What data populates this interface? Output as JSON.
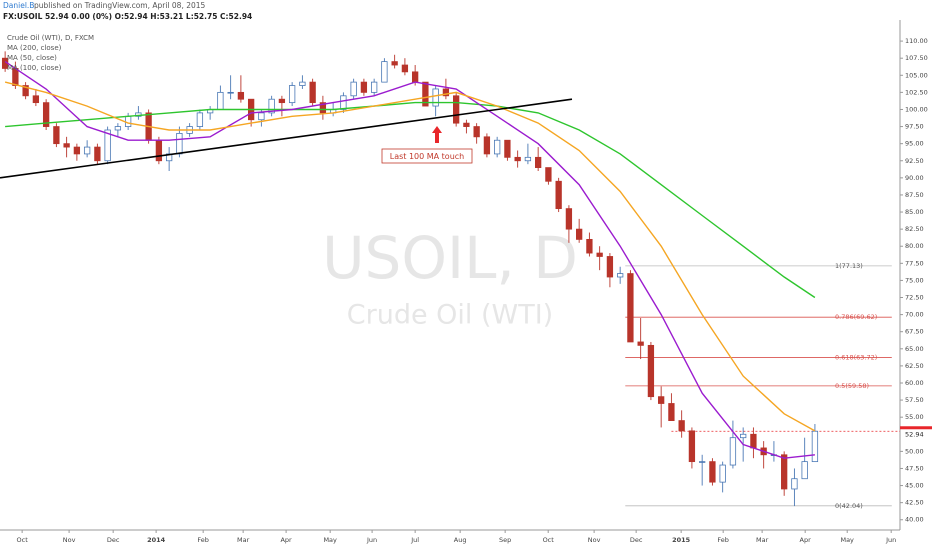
{
  "header": {
    "author": "Daniel.B",
    "published": "published on TradingView.com, April 08, 2015",
    "quote": "FX:USOIL 52.94 0.00 (0%) O:52.94 H:53.21 L:52.75 C:52.94"
  },
  "chart_data": {
    "type": "candlestick",
    "legend": [
      "Crude Oil (WTI), D, FXCM",
      "MA (200, close)",
      "MA (50, close)",
      "MA (100, close)"
    ],
    "watermark": [
      "USOIL, D",
      "Crude Oil (WTI)"
    ],
    "annotation": "Last 100 MA touch",
    "up_color": "#4a78b5",
    "down_color": "#b8342a",
    "xlim": [
      -0.5,
      87.3
    ],
    "ylim": [
      38.5,
      112.5
    ],
    "xticks": [
      {
        "value": 1.66,
        "label": "Oct"
      },
      {
        "value": 6.24,
        "label": "Nov"
      },
      {
        "value": 10.54,
        "label": "Dec"
      },
      {
        "value": 14.73,
        "label": "2014"
      },
      {
        "value": 19.32,
        "label": "Feb"
      },
      {
        "value": 23.22,
        "label": "Mar"
      },
      {
        "value": 27.41,
        "label": "Apr"
      },
      {
        "value": 31.71,
        "label": "May"
      },
      {
        "value": 35.8,
        "label": "Jun"
      },
      {
        "value": 40,
        "label": "Jul"
      },
      {
        "value": 44.39,
        "label": "Aug"
      },
      {
        "value": 48.78,
        "label": "Sep"
      },
      {
        "value": 52.98,
        "label": "Oct"
      },
      {
        "value": 57.46,
        "label": "Nov"
      },
      {
        "value": 61.56,
        "label": "Dec"
      },
      {
        "value": 65.95,
        "label": "2015"
      },
      {
        "value": 70.05,
        "label": "Feb"
      },
      {
        "value": 73.85,
        "label": "Mar"
      },
      {
        "value": 78.05,
        "label": "Apr"
      },
      {
        "value": 82.15,
        "label": "May"
      },
      {
        "value": 86.44,
        "label": "Jun"
      }
    ],
    "yticks": [
      {
        "value": 40,
        "label": "40.00"
      },
      {
        "value": 42.5,
        "label": "42.50"
      },
      {
        "value": 45,
        "label": "45.00"
      },
      {
        "value": 47.5,
        "label": "47.50"
      },
      {
        "value": 50,
        "label": "50.00"
      },
      {
        "value": 55,
        "label": "55.00"
      },
      {
        "value": 57.5,
        "label": "57.50"
      },
      {
        "value": 60,
        "label": "60.00"
      },
      {
        "value": 62.5,
        "label": "62.50"
      },
      {
        "value": 65,
        "label": "65.00"
      },
      {
        "value": 67.5,
        "label": "67.50"
      },
      {
        "value": 70,
        "label": "70.00"
      },
      {
        "value": 72.5,
        "label": "72.50"
      },
      {
        "value": 75,
        "label": "75.00"
      },
      {
        "value": 77.5,
        "label": "77.50"
      },
      {
        "value": 80,
        "label": "80.00"
      },
      {
        "value": 82.5,
        "label": "82.50"
      },
      {
        "value": 85,
        "label": "85.00"
      },
      {
        "value": 87.5,
        "label": "87.50"
      },
      {
        "value": 90,
        "label": "90.00"
      },
      {
        "value": 92.5,
        "label": "92.50"
      },
      {
        "value": 95,
        "label": "95.00"
      },
      {
        "value": 97.5,
        "label": "97.50"
      },
      {
        "value": 100,
        "label": "100.00"
      },
      {
        "value": 102.5,
        "label": "102.50"
      },
      {
        "value": 105,
        "label": "105.00"
      },
      {
        "value": 107.5,
        "label": "107.50"
      },
      {
        "value": 110,
        "label": "110.00"
      }
    ],
    "open": [
      107.5,
      106,
      103.5,
      102,
      101,
      97.5,
      95,
      94.5,
      93.5,
      94.5,
      92.5,
      97,
      97.5,
      99,
      99.5,
      95.5,
      92.5,
      93.5,
      96.5,
      97.5,
      99.5,
      100,
      102.5,
      102.5,
      101.5,
      98.5,
      99.5,
      101.5,
      101,
      103.5,
      104,
      101,
      99.5,
      100,
      102,
      104,
      102.5,
      104,
      107,
      106.5,
      105.5,
      104,
      100.5,
      103,
      102,
      98,
      97.5,
      96,
      93.5,
      95.5,
      93,
      92.5,
      93,
      91.5,
      89.5,
      85.5,
      82.5,
      81,
      79,
      78.5,
      75.5,
      76,
      66,
      65.5,
      58,
      57,
      54.5,
      53,
      48.5,
      48.5,
      45.5,
      48,
      52,
      52.5,
      50.5,
      49.5,
      49.5,
      44.5,
      46,
      48.5
    ],
    "high": [
      108.5,
      107,
      104,
      103,
      101.5,
      98,
      96,
      95,
      95.5,
      95,
      97.5,
      98,
      99.5,
      100.5,
      100,
      96,
      94.5,
      97.5,
      98,
      100,
      100.5,
      103.5,
      105,
      105,
      101.5,
      100,
      102,
      102,
      104,
      105,
      104.5,
      102,
      101,
      102.5,
      104.5,
      104.5,
      104.5,
      107.5,
      108,
      107.5,
      106.5,
      104,
      103.5,
      104.5,
      102.5,
      98.5,
      98,
      96.5,
      96,
      95.5,
      94,
      95,
      94.5,
      91.5,
      90,
      86,
      84,
      82,
      80,
      79,
      77,
      76.5,
      69.5,
      66,
      59.5,
      58.5,
      56,
      53.5,
      49.5,
      49,
      48.5,
      54.5,
      53.5,
      53.5,
      51.5,
      51.5,
      50,
      47.5,
      52,
      54
    ],
    "low": [
      105.5,
      103,
      101.5,
      100.5,
      97,
      94.5,
      93,
      92.5,
      93,
      92,
      92,
      96,
      97,
      98.5,
      95,
      92,
      91,
      93,
      96,
      97,
      98.5,
      100,
      101.5,
      101,
      97.5,
      97.5,
      99,
      99,
      100.5,
      103,
      100.5,
      98.5,
      99,
      99.5,
      101.5,
      102,
      102,
      104,
      106,
      105,
      103.5,
      100.5,
      99,
      101.5,
      97.5,
      96.5,
      95,
      93,
      93,
      92.5,
      91.5,
      92,
      91,
      89,
      85,
      80.5,
      80.5,
      78.5,
      76.5,
      74,
      74.5,
      66,
      63.5,
      57.5,
      53.5,
      54.5,
      52,
      47.5,
      45,
      45,
      44,
      47.5,
      48.5,
      49,
      47.5,
      48.5,
      43.5,
      42,
      46,
      48.5
    ],
    "close": [
      106,
      103.5,
      102,
      101,
      97.5,
      95,
      94.5,
      93.5,
      94.5,
      92.5,
      97,
      97.5,
      99,
      99.5,
      95.5,
      92.5,
      93.5,
      96.5,
      97.5,
      99.5,
      100,
      102.5,
      102.5,
      101.5,
      98.5,
      99.5,
      101.5,
      101,
      103.5,
      104,
      101,
      99.5,
      100,
      102,
      104,
      102.5,
      104,
      107,
      106.5,
      105.5,
      104,
      100.5,
      103,
      102,
      98,
      97.5,
      96,
      93.5,
      95.5,
      93,
      92.5,
      93,
      91.5,
      89.5,
      85.5,
      82.5,
      81,
      79,
      78.5,
      75.5,
      76,
      66,
      65.5,
      58,
      57,
      54.5,
      53,
      48.5,
      48.5,
      45.5,
      48,
      52,
      52.5,
      50.5,
      49.5,
      49.5,
      44.5,
      46,
      48.5,
      52.94
    ],
    "ma_x": [
      0,
      4,
      8,
      12,
      16,
      20,
      24,
      28,
      32,
      36,
      40,
      44,
      48,
      52,
      56,
      60,
      64,
      68,
      72,
      76,
      79
    ],
    "series": [
      {
        "name": "MA (200, close)",
        "color": "#2ec52e",
        "values": [
          97.5,
          98,
          98.5,
          99,
          99.5,
          100,
          100,
          100,
          100,
          100.5,
          101,
          101,
          100.5,
          99.5,
          97,
          93.5,
          89,
          84.5,
          80,
          75.5,
          72.5
        ]
      },
      {
        "name": "MA (50, close)",
        "color": "#9b1ccf",
        "values": [
          107,
          103,
          97.5,
          95.5,
          95.5,
          96,
          99.5,
          100,
          101,
          102,
          104,
          103,
          99,
          95,
          89,
          80,
          70,
          58.5,
          51,
          49,
          49.5
        ]
      },
      {
        "name": "MA (100, close)",
        "color": "#f5a623",
        "values": [
          104,
          102.5,
          100.5,
          98,
          97,
          97,
          98,
          99,
          99.5,
          100.5,
          101.5,
          102.5,
          100.5,
          98,
          94,
          88,
          80,
          70,
          61,
          55.5,
          53
        ]
      }
    ],
    "trendline": {
      "x": [
        -0.5,
        55.3
      ],
      "y": [
        90,
        101.5
      ]
    },
    "fib_x": [
      60.5,
      86.5
    ],
    "fib_levels": [
      {
        "value": 77.13,
        "label": "1(77.13)",
        "color": "#bbbbbb"
      },
      {
        "value": 69.62,
        "label": "0.786(69.62)",
        "color": "#d9534f"
      },
      {
        "value": 63.72,
        "label": "0.618(63.72)",
        "color": "#d9534f"
      },
      {
        "value": 59.58,
        "label": "0.5(59.58)",
        "color": "#d9534f"
      },
      {
        "value": 42.04,
        "label": "0(42.04)",
        "color": "#bbbbbb"
      }
    ],
    "last_price": {
      "value": 52.94,
      "label": "52.94",
      "color": "#e8262a"
    }
  }
}
